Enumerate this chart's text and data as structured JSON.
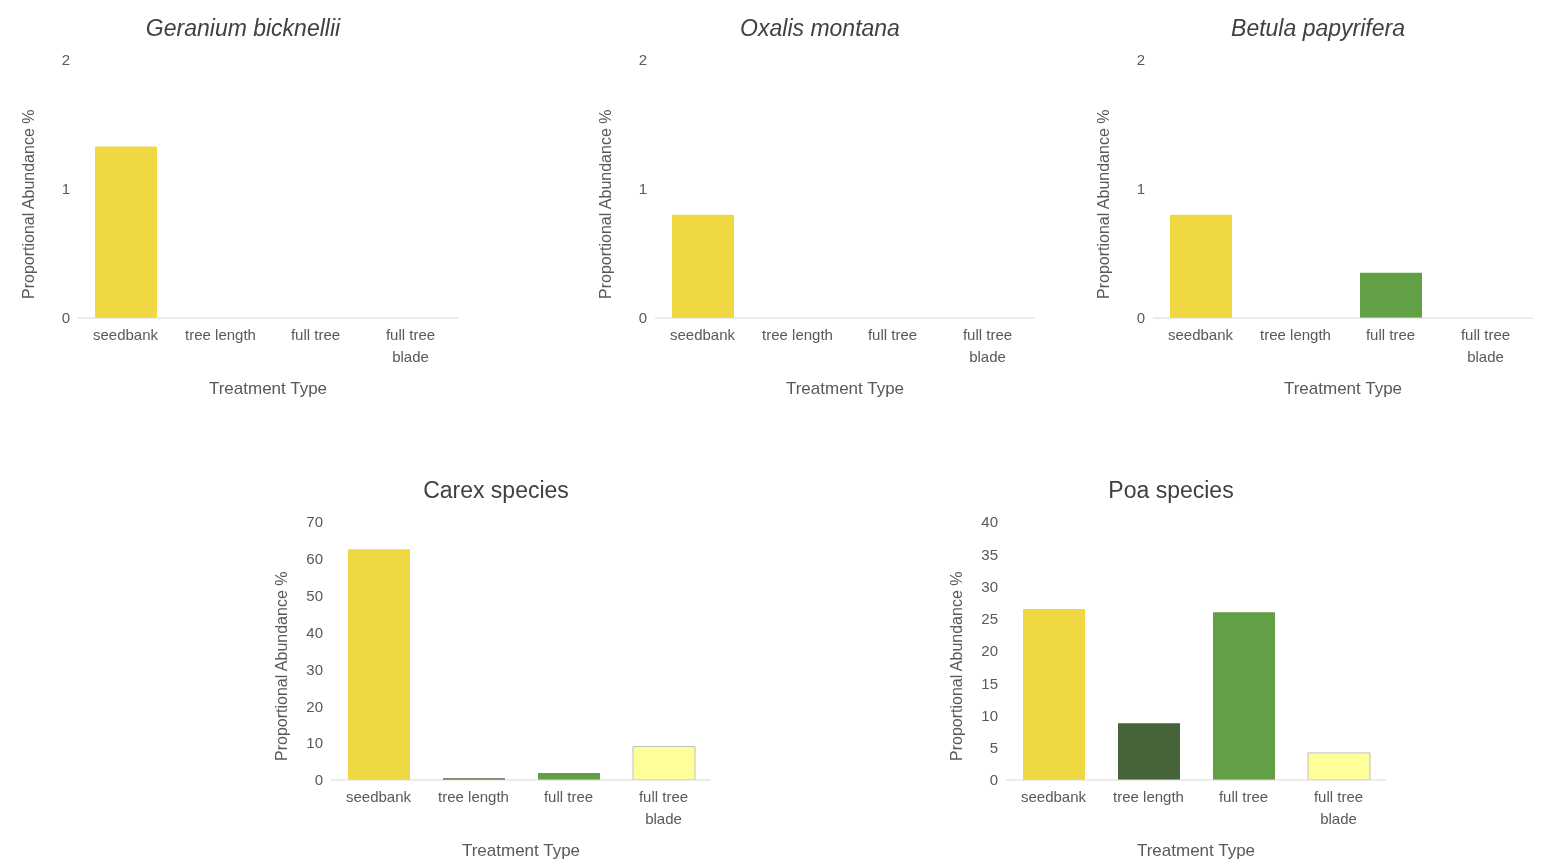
{
  "chart_data": [
    {
      "type": "bar",
      "title": "Geranium bicknellii",
      "xlabel": "Treatment Type",
      "ylabel": "Proportional Abundance %",
      "categories": [
        "seedbank",
        "tree length",
        "full tree",
        "full tree blade"
      ],
      "values": [
        1.33,
        0,
        0,
        0
      ],
      "colors": [
        "#f0d843",
        "#47633a",
        "#62a046",
        "#ffff99"
      ],
      "ylim": [
        0,
        2
      ],
      "yticks": [
        0,
        1,
        2
      ],
      "grid": false
    },
    {
      "type": "bar",
      "title": "Oxalis montana",
      "xlabel": "Treatment Type",
      "ylabel": "Proportional Abundance %",
      "categories": [
        "seedbank",
        "tree length",
        "full tree",
        "full tree blade"
      ],
      "values": [
        0.8,
        0,
        0,
        0
      ],
      "colors": [
        "#f0d843",
        "#47633a",
        "#62a046",
        "#ffff99"
      ],
      "ylim": [
        0,
        2
      ],
      "yticks": [
        0,
        1,
        2
      ],
      "grid": false
    },
    {
      "type": "bar",
      "title": "Betula papyrifera",
      "xlabel": "Treatment Type",
      "ylabel": "Proportional Abundance %",
      "categories": [
        "seedbank",
        "tree length",
        "full tree",
        "full tree blade"
      ],
      "values": [
        0.8,
        0,
        0.35,
        0
      ],
      "colors": [
        "#f0d843",
        "#47633a",
        "#62a046",
        "#ffff99"
      ],
      "ylim": [
        0,
        2
      ],
      "yticks": [
        0,
        1,
        2
      ],
      "grid": false
    },
    {
      "type": "bar",
      "title": "Carex species",
      "xlabel": "Treatment Type",
      "ylabel": "Proportional Abundance %",
      "categories": [
        "seedbank",
        "tree length",
        "full tree",
        "full tree blade"
      ],
      "values": [
        62.6,
        0.5,
        1.9,
        9.1
      ],
      "colors": [
        "#f0d843",
        "#47633a",
        "#62a046",
        "#ffff99"
      ],
      "ylim": [
        0,
        70
      ],
      "yticks": [
        0,
        10,
        20,
        30,
        40,
        50,
        60,
        70
      ],
      "grid": false
    },
    {
      "type": "bar",
      "title": "Poa species",
      "xlabel": "Treatment Type",
      "ylabel": "Proportional Abundance %",
      "categories": [
        "seedbank",
        "tree length",
        "full tree",
        "full tree blade"
      ],
      "values": [
        26.5,
        8.8,
        26.0,
        4.2
      ],
      "colors": [
        "#f0d843",
        "#47633a",
        "#62a046",
        "#ffff99"
      ],
      "ylim": [
        0,
        40
      ],
      "yticks": [
        0,
        5,
        10,
        15,
        20,
        25,
        30,
        35,
        40
      ],
      "grid": false
    }
  ]
}
